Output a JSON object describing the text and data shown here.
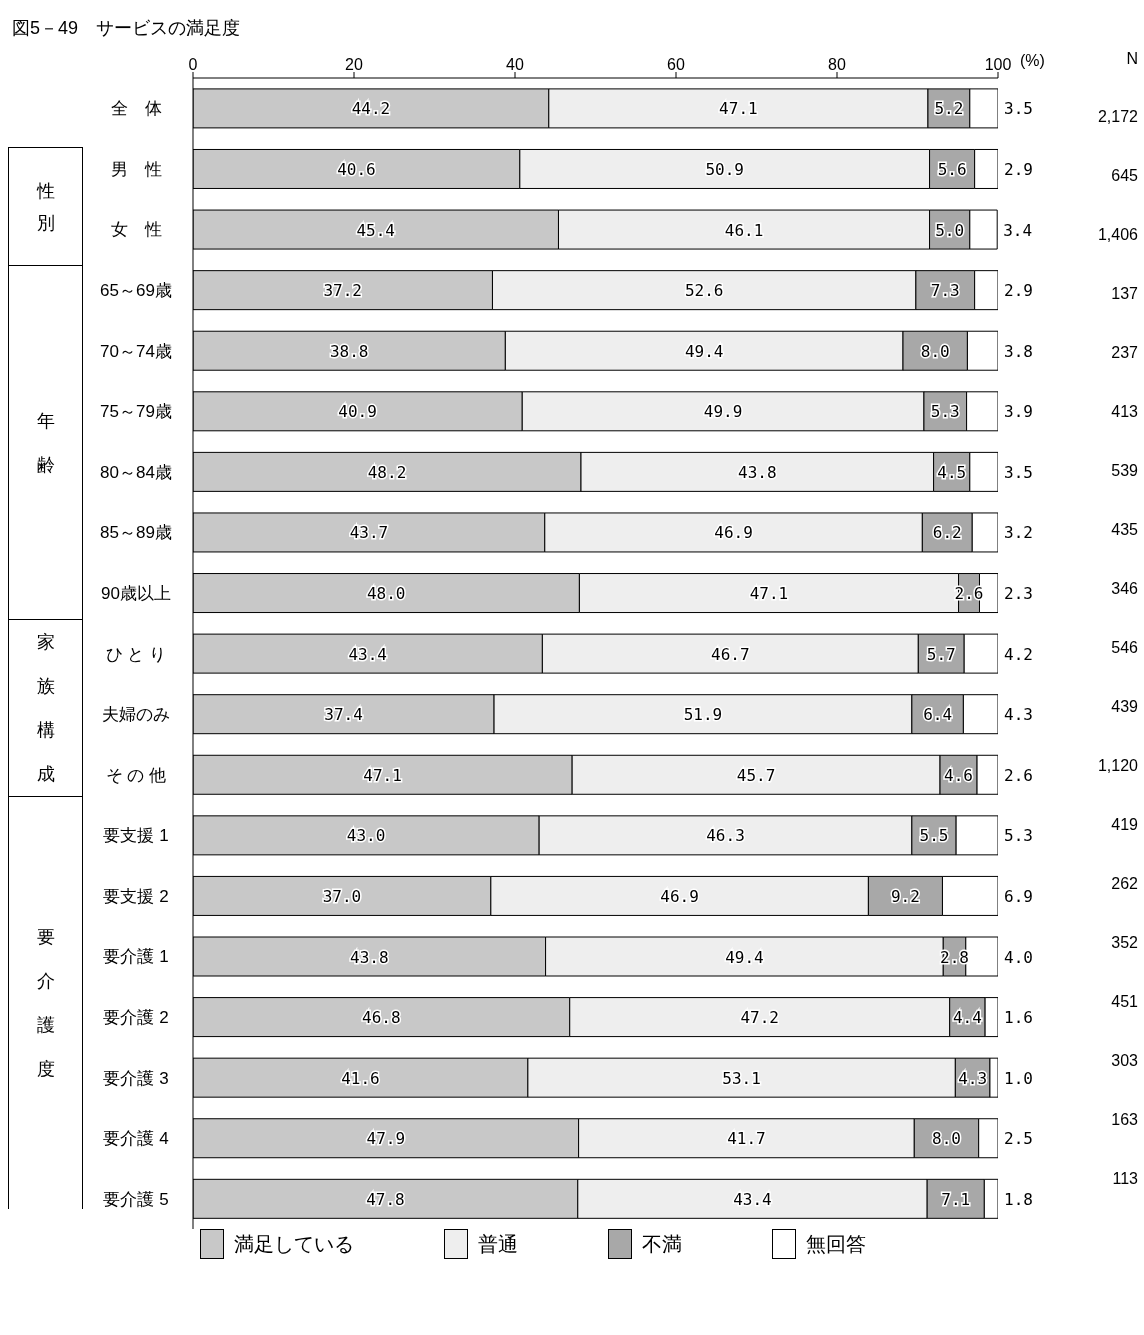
{
  "chart_data": {
    "type": "bar",
    "orientation": "horizontal",
    "stacked": true,
    "title": "図5－49　サービスの満足度",
    "xlabel": "(%)",
    "xlim": [
      0,
      100
    ],
    "xticks": [
      0,
      20,
      40,
      60,
      80,
      100
    ],
    "legend": "bottom",
    "grid": false,
    "categories": [
      "全　体",
      "男　性",
      "女　性",
      "65～69歳",
      "70～74歳",
      "75～79歳",
      "80～84歳",
      "85～89歳",
      "90歳以上",
      "ひ と り",
      "夫婦のみ",
      "そ の 他",
      "要支援 1",
      "要支援 2",
      "要介護 1",
      "要介護 2",
      "要介護 3",
      "要介護 4",
      "要介護 5"
    ],
    "annotations": [
      "性別",
      "年齢",
      "家族構成",
      "要介護度",
      "N",
      "2,172",
      "645",
      "1,406",
      "137",
      "237",
      "413",
      "539",
      "435",
      "346",
      "546",
      "439",
      "1,120",
      "419",
      "262",
      "352",
      "451",
      "303",
      "163",
      "113"
    ],
    "series": [
      {
        "name": "満足している",
        "color": "#c8c8c8",
        "values": [
          44.2,
          40.6,
          45.4,
          37.2,
          38.8,
          40.9,
          48.2,
          43.7,
          48.0,
          43.4,
          37.4,
          47.1,
          43.0,
          37.0,
          43.8,
          46.8,
          41.6,
          47.9,
          47.8
        ],
        "value_labels": [
          "44.2",
          "40.6",
          "45.4",
          "37.2",
          "38.8",
          "40.9",
          "48.2",
          "43.7",
          "48.0",
          "43.4",
          "37.4",
          "47.1",
          "43.0",
          "37.0",
          "43.8",
          "46.8",
          "41.6",
          "47.9",
          "47.8"
        ]
      },
      {
        "name": "普通",
        "color": "#eeeeee",
        "values": [
          47.1,
          50.9,
          46.1,
          52.6,
          49.4,
          49.9,
          43.8,
          46.9,
          47.1,
          46.7,
          51.9,
          45.7,
          46.3,
          46.9,
          49.4,
          47.2,
          53.1,
          41.7,
          43.4
        ],
        "value_labels": [
          "47.1",
          "50.9",
          "46.1",
          "52.6",
          "49.4",
          "49.9",
          "43.8",
          "46.9",
          "47.1",
          "46.7",
          "51.9",
          "45.7",
          "46.3",
          "46.9",
          "49.4",
          "47.2",
          "53.1",
          "41.7",
          "43.4"
        ]
      },
      {
        "name": "不満",
        "color": "#a8a8a8",
        "values": [
          5.2,
          5.6,
          5.0,
          7.3,
          8.0,
          5.3,
          4.5,
          6.2,
          2.6,
          5.7,
          6.4,
          4.6,
          5.5,
          9.2,
          2.8,
          4.4,
          4.3,
          8.0,
          7.1
        ],
        "value_labels": [
          "5.2",
          "5.6",
          "5.0",
          "7.3",
          "8.0",
          "5.3",
          "4.5",
          "6.2",
          "2.6",
          "5.7",
          "6.4",
          "4.6",
          "5.5",
          "9.2",
          "2.8",
          "4.4",
          "4.3",
          "8.0",
          "7.1"
        ]
      },
      {
        "name": "無回答",
        "color": "#ffffff",
        "values": [
          3.5,
          2.9,
          3.4,
          2.9,
          3.8,
          3.9,
          3.5,
          3.2,
          2.3,
          4.2,
          4.3,
          2.6,
          5.3,
          6.9,
          4.0,
          1.6,
          1.0,
          2.5,
          1.8
        ],
        "value_labels": [
          "3.5",
          "2.9",
          "3.4",
          "2.9",
          "3.8",
          "3.9",
          "3.5",
          "3.2",
          "2.3",
          "4.2",
          "4.3",
          "2.6",
          "5.3",
          "6.9",
          "4.0",
          "1.6",
          "1.0",
          "2.5",
          "1.8"
        ]
      }
    ]
  }
}
